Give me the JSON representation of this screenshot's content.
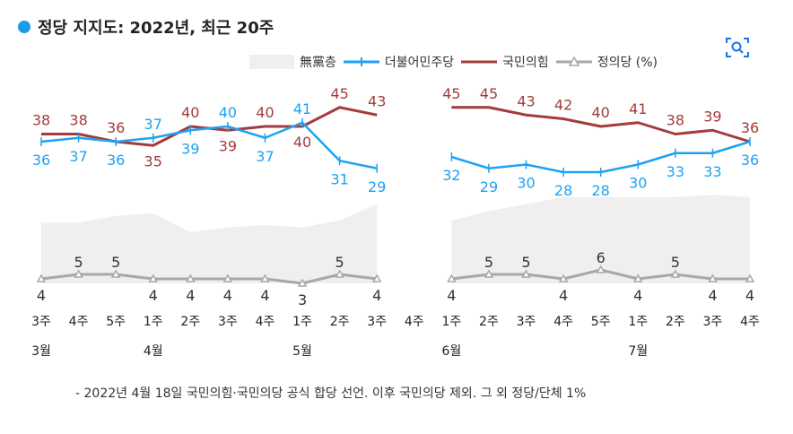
{
  "title": "정당 지지도: 2022년, 최근 20주",
  "colors": {
    "title_dot": "#1a9be8",
    "undecided": "#efefef",
    "democratic": "#1ea2f2",
    "ppp": "#a33c3a",
    "justice": "#a8a8a8"
  },
  "icons": {
    "zoom": "zoom-icon"
  },
  "legend": [
    {
      "key": "undecided",
      "label": "無黨층",
      "style": "area"
    },
    {
      "key": "democratic",
      "label": "더불어민주당",
      "style": "line-plus"
    },
    {
      "key": "ppp",
      "label": "국민의힘",
      "style": "line"
    },
    {
      "key": "justice",
      "label": "정의당 (%)",
      "style": "line-triangle"
    }
  ],
  "footnote": "- 2022년 4월 18일 국민의힘·국민의당 공식 합당 선언. 이후 국민의당 제외. 그 외 정당/단체 1%",
  "chart_data": {
    "type": "line",
    "x_ticks": [
      "3주",
      "4주",
      "5주",
      "1주",
      "2주",
      "3주",
      "4주",
      "1주",
      "2주",
      "3주",
      "4주",
      "1주",
      "2주",
      "3주",
      "4주",
      "5주",
      "1주",
      "2주",
      "3주",
      "4주"
    ],
    "month_labels": [
      {
        "index": 0,
        "label": "3월"
      },
      {
        "index": 3,
        "label": "4월"
      },
      {
        "index": 7,
        "label": "5월"
      },
      {
        "index": 11,
        "label": "6월"
      },
      {
        "index": 16,
        "label": "7월"
      }
    ],
    "series": [
      {
        "key": "ppp",
        "name": "국민의힘",
        "values": [
          38,
          38,
          36,
          35,
          40,
          39,
          40,
          40,
          45,
          43,
          null,
          45,
          45,
          43,
          42,
          40,
          41,
          38,
          39,
          36
        ]
      },
      {
        "key": "democratic",
        "name": "더불어민주당",
        "values": [
          36,
          37,
          36,
          37,
          39,
          40,
          37,
          41,
          31,
          29,
          null,
          32,
          29,
          30,
          28,
          28,
          30,
          33,
          33,
          36
        ]
      },
      {
        "key": "justice",
        "name": "정의당",
        "values": [
          4,
          5,
          5,
          4,
          4,
          4,
          4,
          3,
          5,
          4,
          null,
          4,
          5,
          5,
          4,
          6,
          4,
          5,
          4,
          4
        ]
      },
      {
        "key": "undecided",
        "name": "無黨층",
        "values": [
          26,
          26,
          29,
          30,
          22,
          24,
          25,
          24,
          27,
          34,
          null,
          27,
          31,
          34,
          37,
          37,
          37,
          37,
          38,
          37
        ]
      }
    ],
    "labeled_series": [
      "ppp",
      "democratic",
      "justice"
    ],
    "gap_index": 10
  }
}
